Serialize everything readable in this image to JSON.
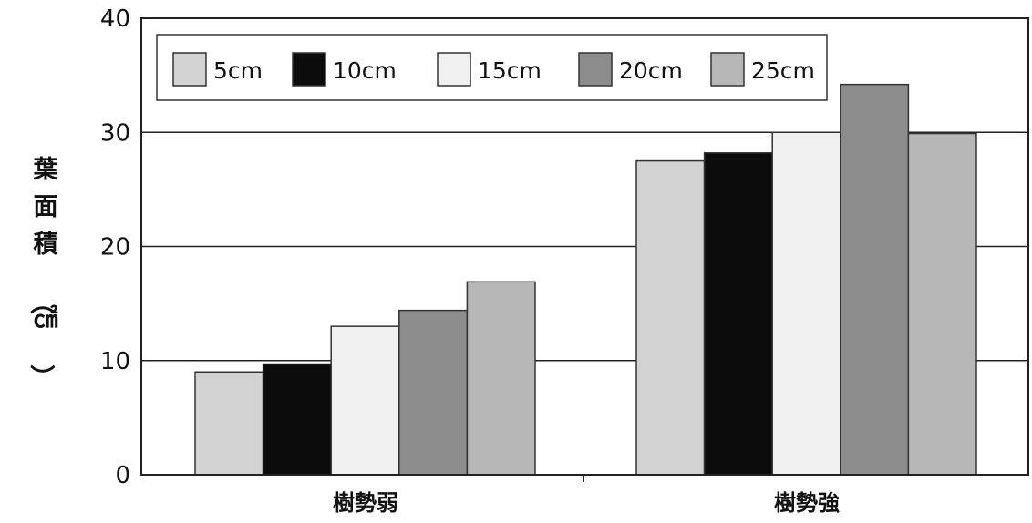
{
  "chart_data": {
    "type": "bar",
    "ylabel": "葉面積（㎠）",
    "ylim": [
      0,
      40
    ],
    "yticks": [
      0,
      10,
      20,
      30,
      40
    ],
    "grid": true,
    "legend_position": "top-left",
    "categories": [
      "樹勢弱",
      "樹勢強"
    ],
    "series": [
      {
        "name": "5cm",
        "color": "#d2d2d2",
        "values": [
          9.0,
          27.5
        ]
      },
      {
        "name": "10cm",
        "color": "#0c0c0c",
        "values": [
          9.7,
          28.2
        ]
      },
      {
        "name": "15cm",
        "color": "#f0f0f0",
        "values": [
          13.0,
          30.0
        ]
      },
      {
        "name": "20cm",
        "color": "#8c8c8c",
        "values": [
          14.4,
          34.2
        ]
      },
      {
        "name": "25cm",
        "color": "#b7b7b7",
        "values": [
          16.9,
          29.9
        ]
      }
    ]
  }
}
